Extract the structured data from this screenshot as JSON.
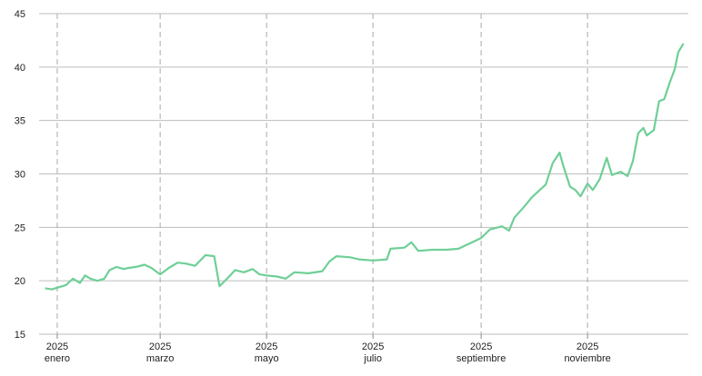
{
  "chart_data": {
    "type": "line",
    "x": [
      -6,
      -2,
      2,
      6,
      10,
      14,
      17,
      20,
      24,
      28,
      31,
      35,
      39,
      42,
      46,
      51,
      55,
      60,
      65,
      70,
      75,
      80,
      86,
      91,
      94,
      99,
      103,
      108,
      113,
      117,
      121,
      127,
      132,
      137,
      145,
      153,
      157,
      161,
      169,
      174,
      182,
      190,
      192,
      200,
      204,
      208,
      216,
      224,
      231,
      235,
      244,
      249,
      256,
      260,
      263,
      269,
      273,
      277,
      281,
      285,
      289,
      291,
      295,
      298,
      301,
      305,
      308,
      312,
      316,
      319,
      324,
      328,
      331,
      334,
      337,
      339,
      343,
      346,
      349,
      352,
      355,
      357,
      360
    ],
    "series": [
      {
        "color": "#6fcf97",
        "values": [
          19.3,
          19.2,
          19.4,
          19.6,
          20.2,
          19.8,
          20.5,
          20.2,
          20.0,
          20.2,
          21.0,
          21.3,
          21.1,
          21.2,
          21.3,
          21.5,
          21.2,
          20.6,
          21.2,
          21.7,
          21.6,
          21.4,
          22.4,
          22.3,
          19.5,
          20.3,
          21.0,
          20.8,
          21.1,
          20.6,
          20.5,
          20.4,
          20.2,
          20.8,
          20.7,
          20.9,
          21.8,
          22.3,
          22.2,
          22.0,
          21.9,
          22.0,
          23.0,
          23.1,
          23.6,
          22.8,
          22.9,
          22.9,
          23.0,
          23.3,
          24.0,
          24.8,
          25.1,
          24.7,
          25.9,
          27.0,
          27.8,
          28.4,
          29.0,
          31.0,
          32.0,
          30.8,
          28.8,
          28.5,
          27.9,
          29.1,
          28.5,
          29.5,
          31.5,
          29.9,
          30.2,
          29.8,
          31.2,
          33.8,
          34.3,
          33.6,
          34.1,
          36.8,
          37.0,
          38.5,
          39.8,
          41.4,
          42.2
        ]
      }
    ],
    "xlim": [
      -9.4,
      362.8
    ],
    "xticks": [
      {
        "value": 1,
        "label": "2025"
      },
      {
        "value": 60,
        "label": "2025"
      },
      {
        "value": 121,
        "label": "2025"
      },
      {
        "value": 182,
        "label": "2025"
      },
      {
        "value": 244,
        "label": "2025"
      },
      {
        "value": 305,
        "label": "2025"
      }
    ],
    "xtick_months": [
      "enero",
      "marzo",
      "mayo",
      "julio",
      "septiembre",
      "noviembre"
    ],
    "ylim": [
      15,
      45
    ],
    "yticks": [
      15,
      20,
      25,
      30,
      35,
      40,
      45
    ],
    "grid": true
  }
}
